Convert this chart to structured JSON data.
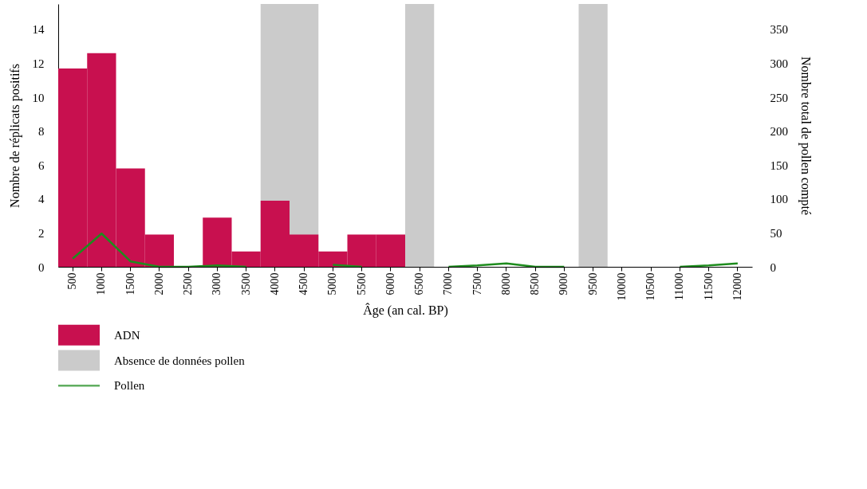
{
  "chart_data": {
    "type": "bar",
    "xlabel": "Âge (an cal. BP)",
    "ylabel": "Nombre de réplicats positifs",
    "y2label": "Nombre total de pollen compté",
    "categories": [
      "500",
      "1000",
      "1500",
      "2000",
      "2500",
      "3000",
      "3500",
      "4000",
      "4500",
      "5000",
      "5500",
      "6000",
      "6500",
      "7000",
      "7500",
      "8000",
      "8500",
      "9000",
      "9500",
      "10000",
      "10500",
      "11000",
      "11500",
      "12000"
    ],
    "series": [
      {
        "name": "ADN",
        "color": "#c8104f",
        "values": [
          11.7,
          12.6,
          5.8,
          1.9,
          0,
          2.9,
          0.9,
          3.9,
          1.9,
          0.9,
          1.9,
          1.9,
          0,
          0,
          0,
          0,
          0,
          0,
          0,
          0,
          0,
          0,
          0,
          0
        ]
      },
      {
        "name": "Pollen",
        "type": "line",
        "axis": "y2",
        "color": "#1e8c1e",
        "values": [
          12,
          49,
          8,
          0,
          0,
          2,
          0,
          null,
          null,
          3,
          0,
          null,
          null,
          0,
          2,
          5,
          0,
          0,
          null,
          null,
          null,
          0,
          2,
          5
        ]
      }
    ],
    "ylim": [
      0,
      15.5
    ],
    "yticks": [
      0,
      2,
      4,
      6,
      8,
      10,
      12,
      14
    ],
    "y2lim": [
      0,
      387.5
    ],
    "y2ticks": [
      0,
      50,
      100,
      150,
      200,
      250,
      300,
      350
    ],
    "bands": [
      {
        "axis": "x",
        "from": "4000",
        "to": "4500",
        "label": "Absence de données pollen",
        "color": "#cbcbcb"
      },
      {
        "axis": "x",
        "from": "6500",
        "to": "6500",
        "color": "#cbcbcb"
      },
      {
        "axis": "x",
        "from": "9500",
        "to": "9500",
        "color": "#cbcbcb"
      }
    ],
    "grid": false,
    "legend": "bottom"
  }
}
